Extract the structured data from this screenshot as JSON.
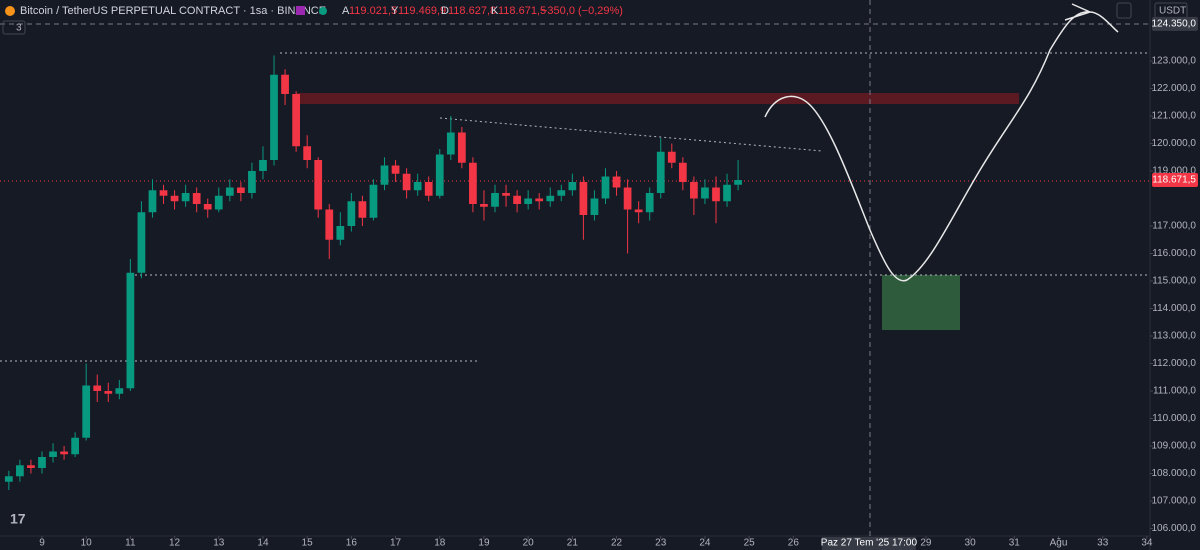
{
  "header": {
    "symbol": "Bitcoin / TetherUS PERPETUAL CONTRACT · 1sa · BINANCE",
    "open_label": "A",
    "open": "119.021,5",
    "high_label": "Y",
    "high": "119.469,9",
    "low_label": "D",
    "low": "118.627,8",
    "close_label": "K",
    "close": "118.671,5",
    "change": "−350,0 (−0,29%)",
    "indicator_count": "3",
    "currency": "USDT",
    "logo": "17"
  },
  "chart_data": {
    "type": "candlestick",
    "colors": {
      "up": "#089981",
      "down": "#f23645"
    },
    "x": [
      8.25,
      8.5,
      8.75,
      9,
      9.25,
      9.5,
      9.75,
      10,
      10.25,
      10.5,
      10.75,
      11,
      11.25,
      11.5,
      11.75,
      12,
      12.25,
      12.5,
      12.75,
      13,
      13.25,
      13.5,
      13.75,
      14,
      14.25,
      14.5,
      14.75,
      15,
      15.25,
      15.5,
      15.75,
      16,
      16.25,
      16.5,
      16.75,
      17,
      17.25,
      17.5,
      17.75,
      18,
      18.25,
      18.5,
      18.75,
      19,
      19.25,
      19.5,
      19.75,
      20,
      20.25,
      20.5,
      20.75,
      21,
      21.25,
      21.5,
      21.75,
      22,
      22.25,
      22.5,
      22.75,
      23,
      23.25,
      23.5,
      23.75,
      24,
      24.25,
      24.5,
      24.75
    ],
    "open": [
      107700,
      107900,
      108300,
      108200,
      108600,
      108800,
      108700,
      109300,
      111200,
      111000,
      110900,
      111100,
      115300,
      117500,
      118300,
      118100,
      117900,
      118200,
      117800,
      117600,
      118100,
      118400,
      118200,
      119000,
      119400,
      122500,
      121800,
      119900,
      119400,
      117600,
      116500,
      117000,
      117900,
      117300,
      118500,
      119200,
      118900,
      118300,
      118600,
      118100,
      119600,
      120400,
      119300,
      117800,
      117700,
      118200,
      118100,
      117800,
      118000,
      117900,
      118100,
      118300,
      118600,
      117400,
      118000,
      118800,
      118400,
      117600,
      117500,
      118200,
      119700,
      119300,
      118600,
      118000,
      118400,
      117900,
      118500
    ],
    "high": [
      108100,
      108500,
      108500,
      108800,
      109100,
      109000,
      109500,
      112000,
      111600,
      111300,
      111400,
      115800,
      117900,
      118700,
      118500,
      118300,
      118500,
      118400,
      118000,
      118400,
      118700,
      118600,
      119300,
      119900,
      123200,
      122700,
      121900,
      120300,
      119500,
      117800,
      117500,
      118200,
      118100,
      118700,
      119500,
      119400,
      119100,
      118900,
      118800,
      119800,
      121000,
      120600,
      119500,
      118300,
      118500,
      118500,
      118300,
      118300,
      118200,
      118400,
      118500,
      118900,
      118800,
      118300,
      119100,
      119000,
      118700,
      117900,
      118400,
      120200,
      120000,
      119500,
      118800,
      118700,
      118800,
      118900,
      119400
    ],
    "low": [
      107400,
      107700,
      108000,
      108000,
      108400,
      108500,
      108600,
      109200,
      110600,
      110600,
      110700,
      111000,
      115100,
      117300,
      117800,
      117600,
      117700,
      117500,
      117300,
      117500,
      117900,
      117900,
      118000,
      118700,
      119200,
      121400,
      119700,
      119100,
      117300,
      115800,
      116300,
      116800,
      117000,
      117200,
      118300,
      118600,
      118000,
      118100,
      117900,
      118000,
      119400,
      119100,
      117500,
      117200,
      117500,
      117700,
      117500,
      117600,
      117600,
      117700,
      117900,
      118100,
      116500,
      117200,
      117800,
      118100,
      116000,
      117100,
      117200,
      118000,
      119100,
      118300,
      117400,
      117800,
      117100,
      117700,
      118300
    ],
    "close": [
      107900,
      108300,
      108200,
      108600,
      108800,
      108700,
      109300,
      111200,
      111000,
      110900,
      111100,
      115300,
      117500,
      118300,
      118100,
      117900,
      118200,
      117800,
      117600,
      118100,
      118400,
      118200,
      119000,
      119400,
      122500,
      121800,
      119900,
      119400,
      117600,
      116500,
      117000,
      117900,
      117300,
      118500,
      119200,
      118900,
      118300,
      118600,
      118100,
      119600,
      120400,
      119300,
      117800,
      117700,
      118200,
      118100,
      117800,
      118000,
      117900,
      118100,
      118300,
      118600,
      117400,
      118000,
      118800,
      118400,
      117600,
      117500,
      118200,
      119700,
      119300,
      118600,
      118000,
      118400,
      117900,
      118500,
      118671.5
    ],
    "xlim": [
      8.05,
      34.07
    ],
    "ylim": [
      105218,
      125218
    ],
    "xticks": [
      9,
      10,
      11,
      12,
      13,
      14,
      15,
      16,
      17,
      18,
      19,
      20,
      21,
      22,
      23,
      24,
      25,
      26,
      29,
      30,
      31,
      {
        "value": 32,
        "label": "Ağu"
      },
      33,
      34
    ],
    "yticks": [
      {
        "value": 106000,
        "label": "106.000,0"
      },
      {
        "value": 107000,
        "label": "107.000,0"
      },
      {
        "value": 108000,
        "label": "108.000,0"
      },
      {
        "value": 109000,
        "label": "109.000,0"
      },
      {
        "value": 110000,
        "label": "110.000,0"
      },
      {
        "value": 111000,
        "label": "111.000,0"
      },
      {
        "value": 112000,
        "label": "112.000,0"
      },
      {
        "value": 113000,
        "label": "113.000,0"
      },
      {
        "value": 114000,
        "label": "114.000,0"
      },
      {
        "value": 115000,
        "label": "115.000,0"
      },
      {
        "value": 116000,
        "label": "116.000,0"
      },
      {
        "value": 117000,
        "label": "117.000,0"
      },
      {
        "value": 119000,
        "label": "119.000,0"
      },
      {
        "value": 120000,
        "label": "120.000,0"
      },
      {
        "value": 121000,
        "label": "121.000,0"
      },
      {
        "value": 122000,
        "label": "122.000,0"
      },
      {
        "value": 123000,
        "label": "123.000,0"
      }
    ],
    "last_price": {
      "value": 118671.5,
      "label": "118.671,5"
    },
    "crosshair": {
      "x": {
        "value": 27.71,
        "label": "Paz 27 Tem '25 17:00"
      },
      "y": {
        "value": 124350,
        "label": "124.350,0"
      }
    }
  }
}
